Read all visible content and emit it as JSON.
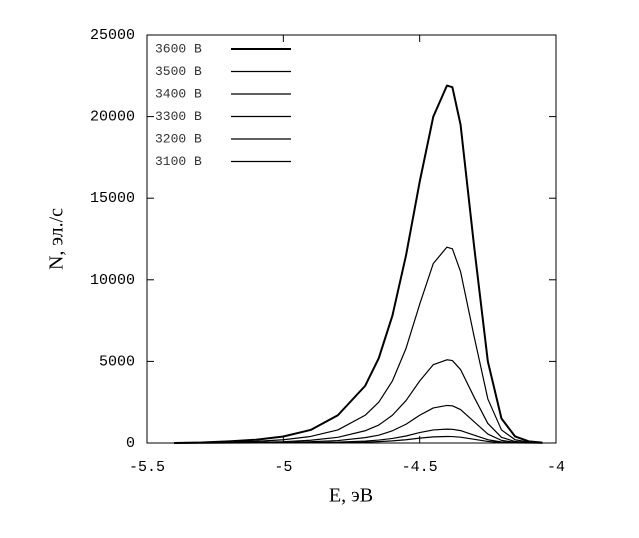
{
  "chart_data": {
    "type": "line",
    "x_label": "E, эВ",
    "y_label": "N, эл./с",
    "x": [
      -5.4,
      -5.3,
      -5.2,
      -5.1,
      -5.0,
      -4.9,
      -4.8,
      -4.7,
      -4.65,
      -4.6,
      -4.55,
      -4.5,
      -4.45,
      -4.4,
      -4.38,
      -4.35,
      -4.3,
      -4.25,
      -4.2,
      -4.15,
      -4.1,
      -4.05
    ],
    "series": [
      {
        "name": "3600 В",
        "color": "#000000",
        "values": [
          0,
          30,
          100,
          200,
          400,
          800,
          1700,
          3500,
          5200,
          7800,
          11500,
          16000,
          20000,
          21900,
          21800,
          19500,
          12000,
          5000,
          1500,
          400,
          100,
          20
        ]
      },
      {
        "name": "3500 В",
        "color": "#000000",
        "values": [
          0,
          15,
          50,
          100,
          200,
          400,
          800,
          1700,
          2500,
          3800,
          5800,
          8500,
          11000,
          12000,
          11900,
          10500,
          6500,
          2700,
          800,
          200,
          50,
          10
        ]
      },
      {
        "name": "3400 В",
        "color": "#000000",
        "values": [
          0,
          5,
          20,
          40,
          80,
          170,
          350,
          750,
          1100,
          1700,
          2600,
          3800,
          4800,
          5100,
          5050,
          4500,
          2800,
          1200,
          350,
          90,
          20,
          0
        ]
      },
      {
        "name": "3300 В",
        "color": "#000000",
        "values": [
          0,
          2,
          8,
          18,
          35,
          75,
          150,
          330,
          480,
          750,
          1150,
          1700,
          2150,
          2300,
          2280,
          2050,
          1300,
          550,
          160,
          40,
          10,
          0
        ]
      },
      {
        "name": "3200 В",
        "color": "#000000",
        "values": [
          0,
          1,
          3,
          7,
          13,
          28,
          55,
          120,
          180,
          280,
          430,
          640,
          800,
          850,
          840,
          760,
          480,
          200,
          60,
          15,
          3,
          0
        ]
      },
      {
        "name": "3100 В",
        "color": "#000000",
        "values": [
          0,
          0,
          1,
          3,
          6,
          13,
          26,
          57,
          85,
          130,
          200,
          300,
          375,
          400,
          395,
          355,
          225,
          95,
          28,
          7,
          2,
          0
        ]
      }
    ],
    "xlim": [
      -5.5,
      -4
    ],
    "xticks": [
      -5.5,
      -5,
      -4.5,
      -4
    ],
    "ylim": [
      0,
      25000
    ],
    "yticks": [
      0,
      5000,
      10000,
      15000,
      20000,
      25000
    ],
    "grid": false,
    "legend": "upper-left"
  }
}
